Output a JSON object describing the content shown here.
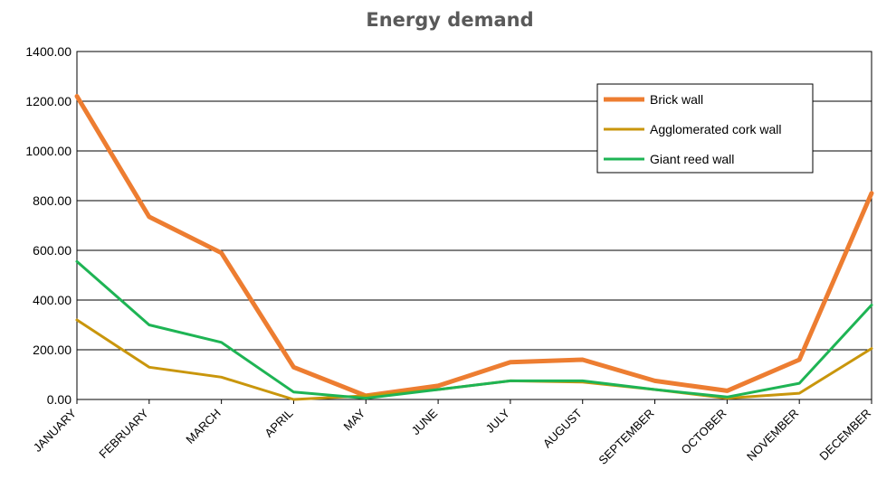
{
  "chart_data": {
    "type": "line",
    "title": "Energy demand",
    "xlabel": "",
    "ylabel": "",
    "categories": [
      "JANUARY",
      "FEBRUARY",
      "MARCH",
      "APRIL",
      "MAY",
      "JUNE",
      "JULY",
      "AUGUST",
      "SEPTEMBER",
      "OCTOBER",
      "NOVEMBER",
      "DECEMBER"
    ],
    "ylim": [
      0,
      1400
    ],
    "yticks": [
      "0.00",
      "200.00",
      "400.00",
      "600.00",
      "800.00",
      "1000.00",
      "1200.00",
      "1400.00"
    ],
    "grid": true,
    "legend_position": "top-right",
    "series": [
      {
        "name": "Brick wall",
        "color": "#ED7D31",
        "width": 5,
        "values": [
          1220,
          735,
          590,
          130,
          15,
          55,
          150,
          160,
          75,
          35,
          160,
          830
        ]
      },
      {
        "name": "Agglomerated cork wall",
        "color": "#C9960C",
        "width": 3,
        "values": [
          320,
          130,
          90,
          0,
          15,
          40,
          75,
          70,
          40,
          5,
          25,
          205
        ]
      },
      {
        "name": "Giant reed wall",
        "color": "#1EB454",
        "width": 3,
        "values": [
          555,
          300,
          230,
          30,
          5,
          40,
          75,
          75,
          40,
          10,
          65,
          380
        ]
      }
    ]
  }
}
